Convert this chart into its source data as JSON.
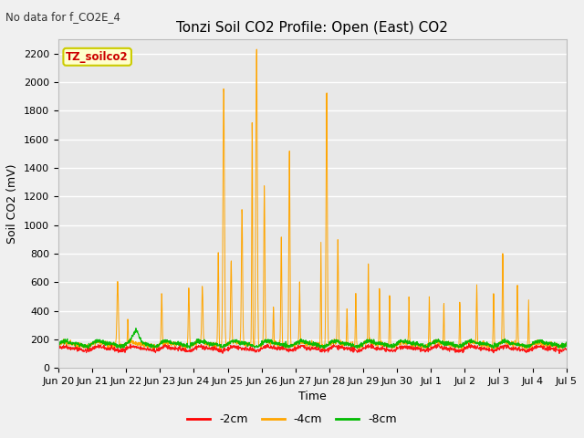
{
  "title": "Tonzi Soil CO2 Profile: Open (East) CO2",
  "no_data_text": "No data for f_CO2E_4",
  "ylabel": "Soil CO2 (mV)",
  "xlabel": "Time",
  "legend_label_text": "TZ_soilco2",
  "series_labels": [
    "-2cm",
    "-4cm",
    "-8cm"
  ],
  "series_colors": [
    "#ff0000",
    "#ffa500",
    "#00bb00"
  ],
  "ylim": [
    0,
    2300
  ],
  "yticks": [
    0,
    200,
    400,
    600,
    800,
    1000,
    1200,
    1400,
    1600,
    1800,
    2000,
    2200
  ],
  "fig_bg_color": "#f0f0f0",
  "plot_bg_color": "#e8e8e8",
  "xtick_labels": [
    "Jun 20",
    "Jun 21",
    "Jun 22",
    "Jun 23",
    "Jun 24",
    "Jun 25",
    "Jun 26",
    "Jun 27",
    "Jun 28",
    "Jun 29",
    "Jun 30",
    "Jul 1",
    "Jul 2",
    "Jul 3",
    "Jul 4",
    "Jul 5"
  ],
  "title_fontsize": 11,
  "axis_fontsize": 9,
  "tick_fontsize": 8
}
